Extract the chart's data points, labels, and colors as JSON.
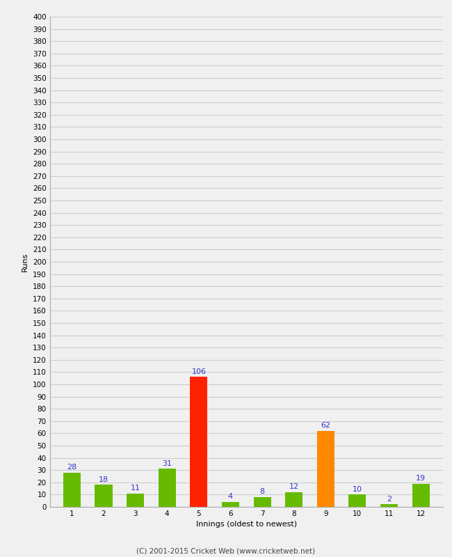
{
  "xlabel": "Innings (oldest to newest)",
  "ylabel": "Runs",
  "categories": [
    1,
    2,
    3,
    4,
    5,
    6,
    7,
    8,
    9,
    10,
    11,
    12
  ],
  "values": [
    28,
    18,
    11,
    31,
    106,
    4,
    8,
    12,
    62,
    10,
    2,
    19
  ],
  "bar_colors": [
    "#66bb00",
    "#66bb00",
    "#66bb00",
    "#66bb00",
    "#ff2200",
    "#66bb00",
    "#66bb00",
    "#66bb00",
    "#ff8800",
    "#66bb00",
    "#66bb00",
    "#66bb00"
  ],
  "ylim": [
    0,
    400
  ],
  "ytick_step": 10,
  "label_color": "#3333cc",
  "background_color": "#f0f0f0",
  "plot_bg_color": "#f0f0f0",
  "grid_color": "#cccccc",
  "footer": "(C) 2001-2015 Cricket Web (www.cricketweb.net)",
  "footer_color": "#444444",
  "axis_label_fontsize": 8,
  "tick_fontsize": 7.5,
  "value_label_fontsize": 8,
  "bar_width": 0.55
}
